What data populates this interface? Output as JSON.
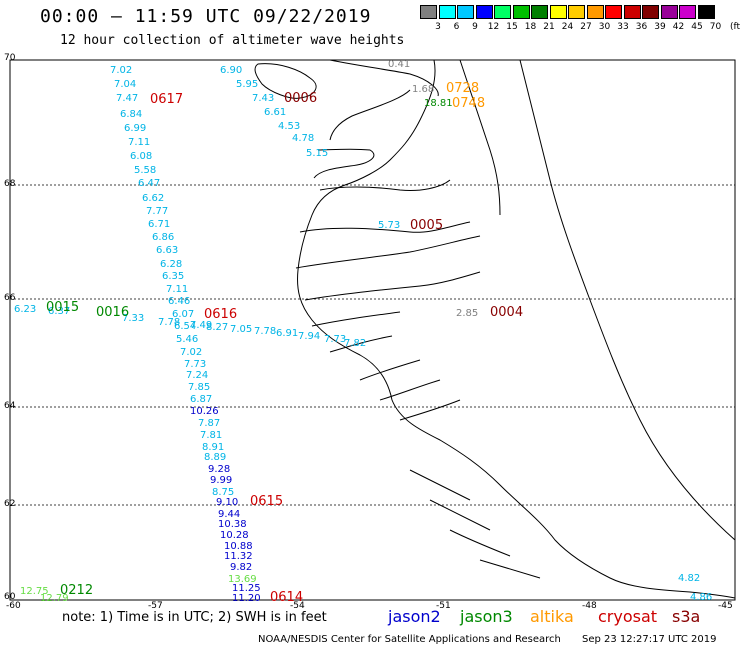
{
  "header": {
    "title": "00:00 – 11:59 UTC 09/22/2019",
    "subtitle": "12 hour collection of altimeter wave heights"
  },
  "legend": {
    "labels": [
      "3",
      "6",
      "9",
      "12",
      "15",
      "18",
      "21",
      "24",
      "27",
      "30",
      "33",
      "36",
      "39",
      "42",
      "45",
      "70"
    ],
    "unit": "(ft)",
    "colors": [
      "#808080",
      "#00ffff",
      "#00c8ff",
      "#0000ff",
      "#00ff64",
      "#00c000",
      "#008000",
      "#ffff00",
      "#ffcc00",
      "#ff9900",
      "#ff0000",
      "#cc0000",
      "#800000",
      "#990099",
      "#cc00cc",
      "#000000"
    ]
  },
  "axes": {
    "lat_labels": [
      "70",
      "68",
      "66",
      "64",
      "62",
      "60"
    ],
    "lon_labels": [
      "-60",
      "-57",
      "-54",
      "-51",
      "-48",
      "-45"
    ]
  },
  "footer": {
    "note": "note:  1) Time is in UTC;  2) SWH is in feet",
    "satellites": [
      {
        "name": "jason2",
        "color": "#0000cc"
      },
      {
        "name": "jason3",
        "color": "#008800"
      },
      {
        "name": "altika",
        "color": "#ff9900"
      },
      {
        "name": "cryosat",
        "color": "#cc0000"
      },
      {
        "name": "s3a",
        "color": "#880000"
      }
    ],
    "credit": "NOAA/NESDIS Center for Satellite Applications and Research",
    "stamp": "Sep 23 12:27:17 UTC 2019"
  },
  "track_labels": [
    {
      "text": "0617",
      "color": "#cc0000"
    },
    {
      "text": "0006",
      "color": "#880000"
    },
    {
      "text": "0728",
      "color": "#ff9900"
    },
    {
      "text": "0748",
      "color": "#ff9900"
    },
    {
      "text": "0005",
      "color": "#880000"
    },
    {
      "text": "0004",
      "color": "#880000"
    },
    {
      "text": "0015",
      "color": "#008800"
    },
    {
      "text": "0016",
      "color": "#008800"
    },
    {
      "text": "0616",
      "color": "#cc0000"
    },
    {
      "text": "0615",
      "color": "#cc0000"
    },
    {
      "text": "0614",
      "color": "#cc0000"
    },
    {
      "text": "0212",
      "color": "#008800"
    }
  ],
  "observations": [
    {
      "text": "7.02",
      "color": "#00b4e6"
    },
    {
      "text": "7.04",
      "color": "#00b4e6"
    },
    {
      "text": "7.47",
      "color": "#00b4e6"
    },
    {
      "text": "6.84",
      "color": "#00b4e6"
    },
    {
      "text": "6.99",
      "color": "#00b4e6"
    },
    {
      "text": "7.11",
      "color": "#00b4e6"
    },
    {
      "text": "6.08",
      "color": "#00b4e6"
    },
    {
      "text": "5.58",
      "color": "#00b4e6"
    },
    {
      "text": "6.47",
      "color": "#00b4e6"
    },
    {
      "text": "6.62",
      "color": "#00b4e6"
    },
    {
      "text": "7.77",
      "color": "#00b4e6"
    },
    {
      "text": "6.71",
      "color": "#00b4e6"
    },
    {
      "text": "6.86",
      "color": "#00b4e6"
    },
    {
      "text": "6.63",
      "color": "#00b4e6"
    },
    {
      "text": "6.28",
      "color": "#00b4e6"
    },
    {
      "text": "6.35",
      "color": "#00b4e6"
    },
    {
      "text": "7.11",
      "color": "#00b4e6"
    },
    {
      "text": "6.46",
      "color": "#00b4e6"
    },
    {
      "text": "6.07",
      "color": "#00b4e6"
    },
    {
      "text": "6.54",
      "color": "#00b4e6"
    },
    {
      "text": "5.46",
      "color": "#00b4e6"
    },
    {
      "text": "7.02",
      "color": "#00b4e6"
    },
    {
      "text": "7.73",
      "color": "#00b4e6"
    },
    {
      "text": "7.24",
      "color": "#00b4e6"
    },
    {
      "text": "7.85",
      "color": "#00b4e6"
    },
    {
      "text": "6.87",
      "color": "#00b4e6"
    },
    {
      "text": "10.26",
      "color": "#0000cc"
    },
    {
      "text": "7.87",
      "color": "#00b4e6"
    },
    {
      "text": "7.81",
      "color": "#00b4e6"
    },
    {
      "text": "8.91",
      "color": "#00b4e6"
    },
    {
      "text": "8.89",
      "color": "#00b4e6"
    },
    {
      "text": "9.28",
      "color": "#0000cc"
    },
    {
      "text": "9.99",
      "color": "#0000cc"
    },
    {
      "text": "8.75",
      "color": "#00b4e6"
    },
    {
      "text": "9.10",
      "color": "#0000cc"
    },
    {
      "text": "9.44",
      "color": "#0000cc"
    },
    {
      "text": "10.38",
      "color": "#0000cc"
    },
    {
      "text": "10.28",
      "color": "#0000cc"
    },
    {
      "text": "10.88",
      "color": "#0000cc"
    },
    {
      "text": "11.32",
      "color": "#0000cc"
    },
    {
      "text": "9.82",
      "color": "#0000cc"
    },
    {
      "text": "13.69",
      "color": "#66dd44"
    },
    {
      "text": "11.25",
      "color": "#0000cc"
    },
    {
      "text": "11.20",
      "color": "#0000cc"
    },
    {
      "text": "6.90",
      "color": "#00b4e6"
    },
    {
      "text": "5.95",
      "color": "#00b4e6"
    },
    {
      "text": "7.43",
      "color": "#00b4e6"
    },
    {
      "text": "6.61",
      "color": "#00b4e6"
    },
    {
      "text": "4.53",
      "color": "#00b4e6"
    },
    {
      "text": "4.78",
      "color": "#00b4e6"
    },
    {
      "text": "5.15",
      "color": "#00b4e6"
    },
    {
      "text": "0.41",
      "color": "#808080"
    },
    {
      "text": "1.68",
      "color": "#808080"
    },
    {
      "text": "18.81",
      "color": "#008800"
    },
    {
      "text": "5.73",
      "color": "#00b4e6"
    },
    {
      "text": "2.85",
      "color": "#808080"
    },
    {
      "text": "6.23",
      "color": "#00b4e6"
    },
    {
      "text": "6.37",
      "color": "#00b4e6"
    },
    {
      "text": "7.33",
      "color": "#00b4e6"
    },
    {
      "text": "7.78",
      "color": "#00b4e6"
    },
    {
      "text": "7.49",
      "color": "#00b4e6"
    },
    {
      "text": "8.27",
      "color": "#00b4e6"
    },
    {
      "text": "7.05",
      "color": "#00b4e6"
    },
    {
      "text": "7.78",
      "color": "#00b4e6"
    },
    {
      "text": "6.91",
      "color": "#00b4e6"
    },
    {
      "text": "7.94",
      "color": "#00b4e6"
    },
    {
      "text": "7.73",
      "color": "#00b4e6"
    },
    {
      "text": "7.82",
      "color": "#00b4e6"
    },
    {
      "text": "12.75",
      "color": "#66dd44"
    },
    {
      "text": "12.79",
      "color": "#66dd44"
    },
    {
      "text": "4.82",
      "color": "#00b4e6"
    },
    {
      "text": "4.86",
      "color": "#00b4e6"
    }
  ]
}
